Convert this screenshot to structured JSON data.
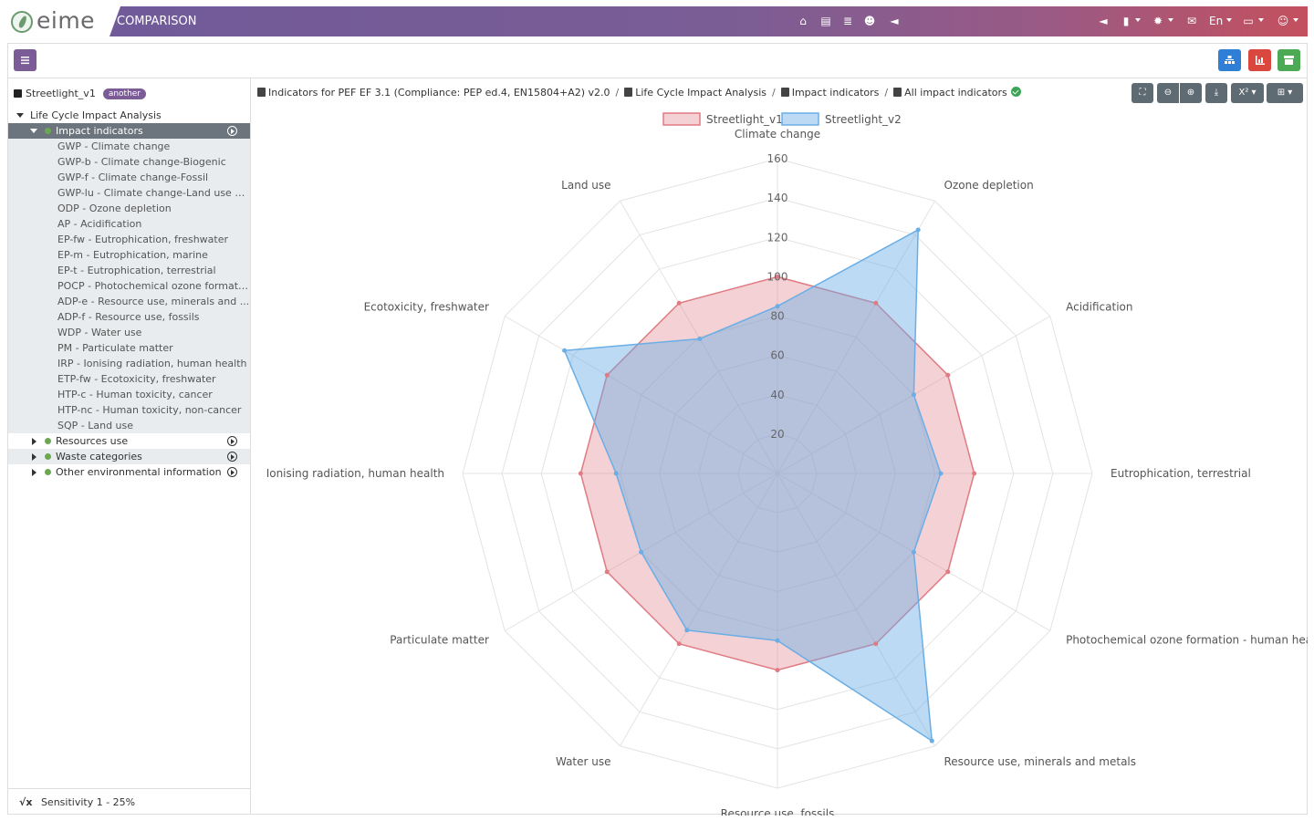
{
  "app": {
    "logo_text": "eime",
    "module": "COMPARISON",
    "language": "En"
  },
  "header_icons": [
    "home-icon",
    "archive-icon",
    "database-icon",
    "user-cog-icon",
    "megaphone-icon"
  ],
  "header_right_icons": [
    "megaphone-icon",
    "book-icon",
    "bug-icon",
    "envelope-icon",
    "inbox-icon",
    "user-gear-icon"
  ],
  "project": {
    "name": "Streetlight_v1",
    "badge": "another"
  },
  "tree": {
    "root": "Life Cycle Impact Analysis",
    "selected": "Impact indicators",
    "children": [
      "GWP - Climate change",
      "GWP-b - Climate change-Biogenic",
      "GWP-f - Climate change-Fossil",
      "GWP-lu - Climate change-Land use a...",
      "ODP - Ozone depletion",
      "AP - Acidification",
      "EP-fw - Eutrophication, freshwater",
      "EP-m - Eutrophication, marine",
      "EP-t - Eutrophication, terrestrial",
      "POCP - Photochemical ozone formati...",
      "ADP-e - Resource use, minerals and ...",
      "ADP-f - Resource use, fossils",
      "WDP - Water use",
      "PM - Particulate matter",
      "IRP - Ionising radiation, human health",
      "ETP-fw - Ecotoxicity, freshwater",
      "HTP-c - Human toxicity, cancer",
      "HTP-nc - Human toxicity, non-cancer",
      "SQP - Land use"
    ],
    "siblings": [
      "Resources use",
      "Waste categories",
      "Other environmental information"
    ]
  },
  "sensitivity": "Sensitivity 1 - 25%",
  "breadcrumb": [
    "Indicators for PEF EF 3.1 (Compliance: PEP ed.4, EN15804+A2) v2.0",
    "Life Cycle Impact Analysis",
    "Impact indicators",
    "All impact indicators"
  ],
  "colors": {
    "series1": "#e07b83",
    "series2": "#6aaee6",
    "accent": "#7b5c96"
  },
  "chart_data": {
    "type": "radar",
    "categories": [
      "Climate change",
      "Ozone depletion",
      "Acidification",
      "Eutrophication, terrestrial",
      "Photochemical ozone formation - human health",
      "Resource use, minerals and metals",
      "Resource use, fossils",
      "Water use",
      "Particulate matter",
      "Ionising radiation, human health",
      "Ecotoxicity, freshwater",
      "Land use"
    ],
    "series": [
      {
        "name": "Streetlight_v1",
        "values": [
          100,
          100,
          100,
          100,
          100,
          100,
          100,
          100,
          100,
          100,
          100,
          100
        ]
      },
      {
        "name": "Streetlight_v2",
        "values": [
          85,
          143,
          80,
          83,
          80,
          157,
          85,
          92,
          80,
          82,
          125,
          79
        ]
      }
    ],
    "r_ticks": [
      "20",
      "40",
      "60",
      "80",
      "100",
      "120",
      "140",
      "160"
    ],
    "rlim": [
      0,
      160
    ],
    "legend": "top-center",
    "grid": true
  }
}
